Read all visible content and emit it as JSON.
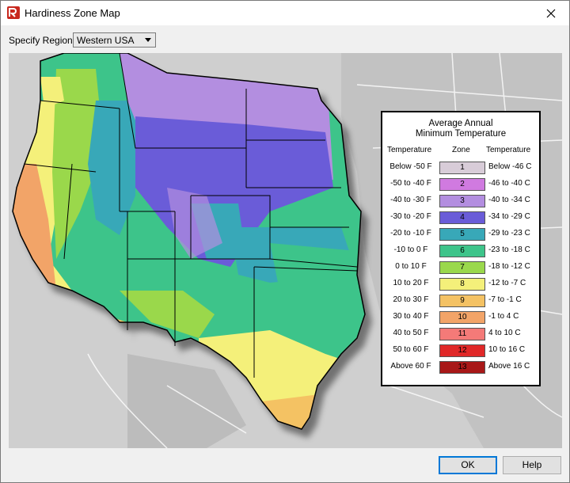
{
  "window": {
    "title": "Hardiness Zone Map"
  },
  "region": {
    "label": "Specify Region:",
    "selected": "Western USA"
  },
  "legend": {
    "title_line1": "Average Annual",
    "title_line2": "Minimum Temperature",
    "header_f": "Temperature",
    "header_zone": "Zone",
    "header_c": "Temperature",
    "zones": [
      {
        "f": "Below -50 F",
        "zone": "1",
        "c": "Below -46 C",
        "color": "#d8ccd8"
      },
      {
        "f": "-50 to -40 F",
        "zone": "2",
        "c": "-46 to -40 C",
        "color": "#d07ae0"
      },
      {
        "f": "-40 to -30 F",
        "zone": "3",
        "c": "-40 to -34 C",
        "color": "#b38ee0"
      },
      {
        "f": "-30 to -20 F",
        "zone": "4",
        "c": "-34 to -29 C",
        "color": "#6a5cd8"
      },
      {
        "f": "-20 to -10 F",
        "zone": "5",
        "c": "-29 to -23 C",
        "color": "#38a8b8"
      },
      {
        "f": "-10 to 0 F",
        "zone": "6",
        "c": "-23 to -18 C",
        "color": "#3ec48a"
      },
      {
        "f": "0 to 10 F",
        "zone": "7",
        "c": "-18 to -12 C",
        "color": "#9ad84c"
      },
      {
        "f": "10 to 20 F",
        "zone": "8",
        "c": "-12 to -7 C",
        "color": "#f4f07a"
      },
      {
        "f": "20 to 30 F",
        "zone": "9",
        "c": "-7 to -1 C",
        "color": "#f4c264"
      },
      {
        "f": "30 to 40 F",
        "zone": "10",
        "c": "-1 to 4 C",
        "color": "#f2a468"
      },
      {
        "f": "40 to 50 F",
        "zone": "11",
        "c": "4 to 10 C",
        "color": "#f47a78"
      },
      {
        "f": "50 to 60 F",
        "zone": "12",
        "c": "10 to 16 C",
        "color": "#e02828"
      },
      {
        "f": "Above 60 F",
        "zone": "13",
        "c": "Above 16 C",
        "color": "#a81818"
      }
    ]
  },
  "buttons": {
    "ok": "OK",
    "help": "Help"
  },
  "colors": {
    "accent": "#0078d7",
    "map_bg": "#c9c9c9"
  }
}
